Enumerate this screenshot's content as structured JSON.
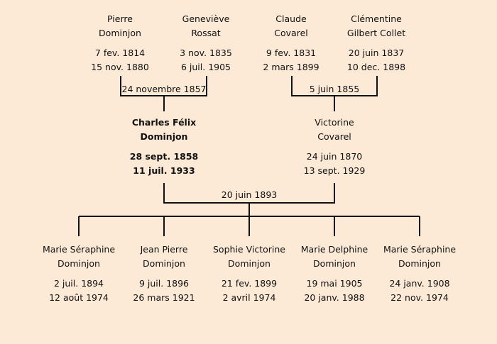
{
  "colors": {
    "background": "#fce9d6",
    "lines": "#111111"
  },
  "grandparents": [
    {
      "first": "Pierre",
      "last": "Dominjon",
      "birth": "7 fev. 1814",
      "death": "15 nov. 1880"
    },
    {
      "first": "Geneviève",
      "last": "Rossat",
      "birth": "3 nov. 1835",
      "death": "6 juil. 1905"
    },
    {
      "first": "Claude",
      "last": "Covarel",
      "birth": "9 fev. 1831",
      "death": "2 mars 1899"
    },
    {
      "first": "Clémentine",
      "last": "Gilbert Collet",
      "birth": "20 juin 1837",
      "death": "10 dec. 1898"
    }
  ],
  "marriages": {
    "paternal": "24 novembre 1857",
    "maternal": "5 juin 1855",
    "parents": "20 juin 1893"
  },
  "parents": [
    {
      "first": "Charles Félix",
      "last": "Dominjon",
      "birth": "28 sept. 1858",
      "death": "11 juil. 1933",
      "highlighted": true
    },
    {
      "first": "Victorine",
      "last": "Covarel",
      "birth": "24 juin 1870",
      "death": "13 sept. 1929"
    }
  ],
  "children": [
    {
      "first": "Marie Séraphine",
      "last": "Dominjon",
      "birth": "2 juil. 1894",
      "death": "12 août 1974"
    },
    {
      "first": "Jean Pierre",
      "last": "Dominjon",
      "birth": "9 juil. 1896",
      "death": "26 mars 1921"
    },
    {
      "first": "Sophie Victorine",
      "last": "Dominjon",
      "birth": "21 fev. 1899",
      "death": "2 avril 1974"
    },
    {
      "first": "Marie Delphine",
      "last": "Dominjon",
      "birth": "19 mai 1905",
      "death": "20 janv. 1988"
    },
    {
      "first": "Marie Séraphine",
      "last": "Dominjon",
      "birth": "24 janv. 1908",
      "death": "22 nov. 1974"
    }
  ]
}
